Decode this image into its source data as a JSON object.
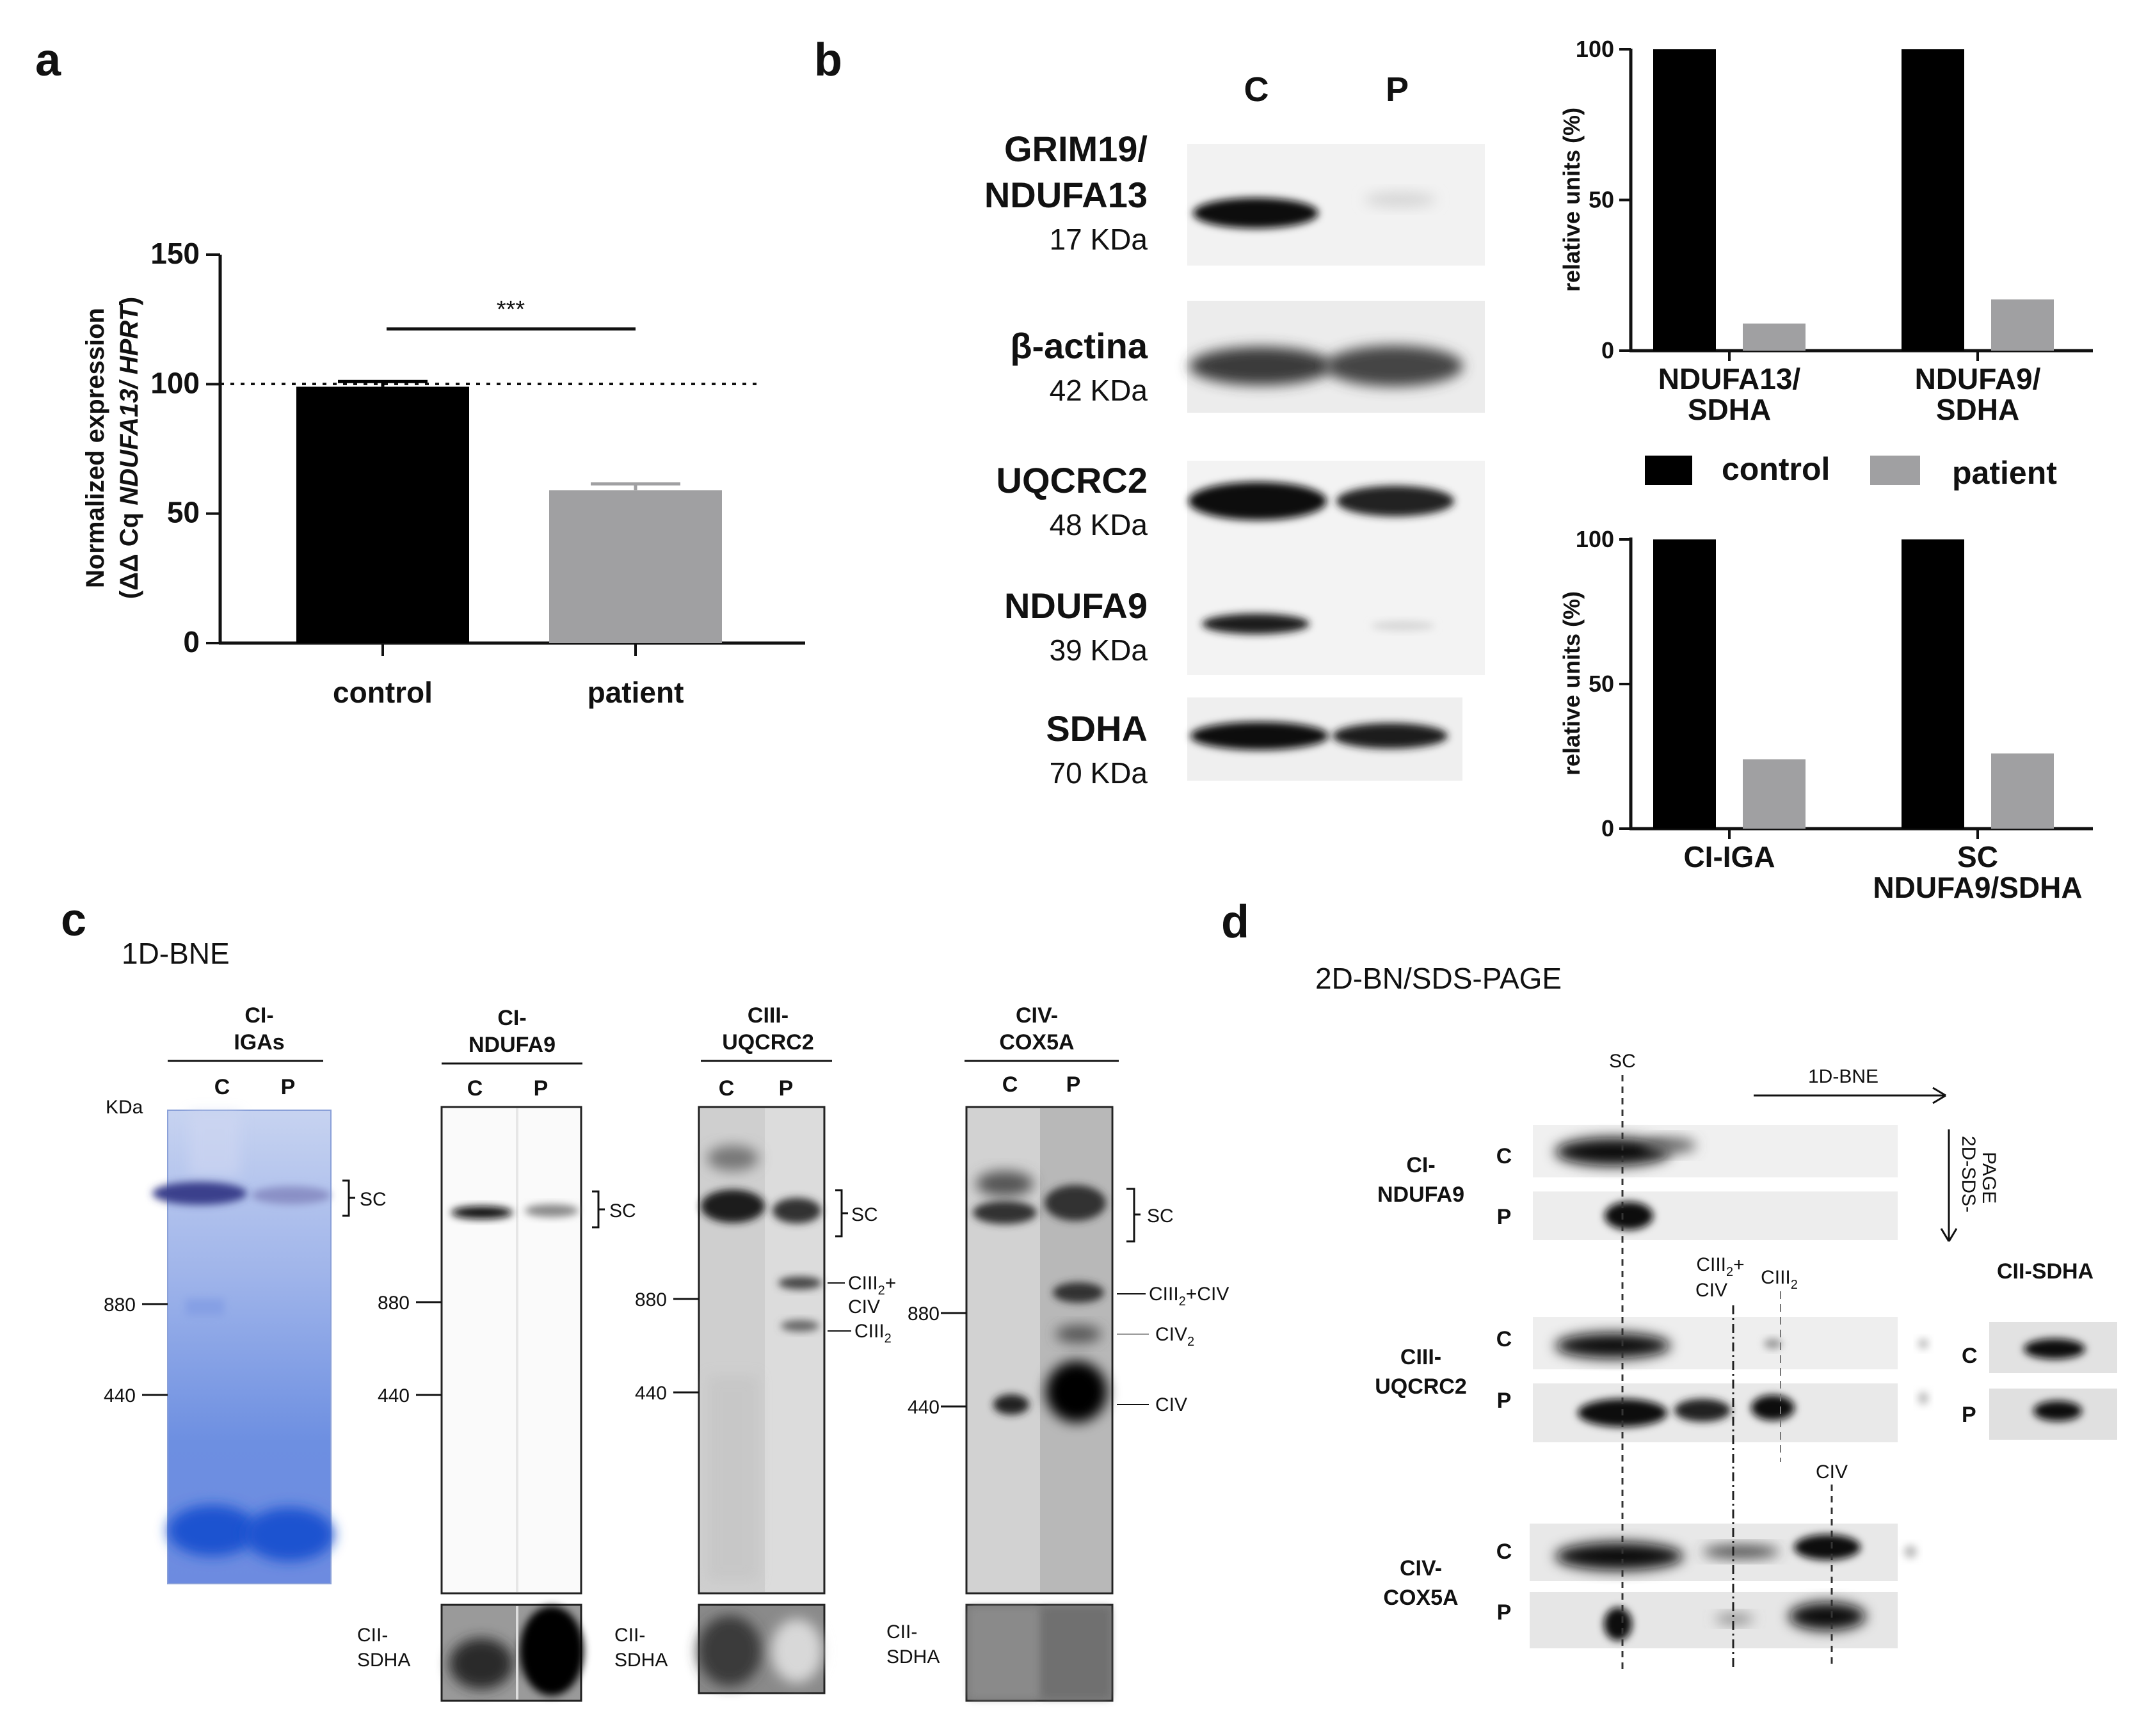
{
  "figure": {
    "panel_a": {
      "label": "a",
      "ylabel_line1": "Normalized expression",
      "ylabel_prefix": "(ΔΔ Cq ",
      "ylabel_italic": "NDUFA13/ HPRT",
      "ylabel_suffix": ")",
      "significance": "***"
    },
    "panel_b": {
      "label": "b",
      "lanes": [
        "C",
        "P"
      ],
      "blots": [
        {
          "name_line1": "GRIM19/",
          "name_line2": "NDUFA13",
          "size": "17 KDa"
        },
        {
          "name_line1": "β-actina",
          "name_line2": "",
          "size": "42 KDa"
        },
        {
          "name_line1": "UQCRC2",
          "name_line2": "",
          "size": "48 KDa"
        },
        {
          "name_line1": "NDUFA9",
          "name_line2": "",
          "size": "39 KDa"
        },
        {
          "name_line1": "SDHA",
          "name_line2": "",
          "size": "70 KDa"
        }
      ],
      "legend": {
        "control": "control",
        "patient": "patient"
      }
    },
    "panel_c": {
      "label": "c",
      "subtitle": "1D-BNE",
      "kda_label": "KDa",
      "gels": [
        {
          "title_line1": "CI-",
          "title_line2": "IGAs",
          "lanes": [
            "C",
            "P"
          ],
          "markers": [
            "880",
            "440"
          ],
          "bands": [
            "SC"
          ],
          "loading": ""
        },
        {
          "title_line1": "CI-",
          "title_line2": "NDUFA9",
          "lanes": [
            "C",
            "P"
          ],
          "markers": [
            "880",
            "440"
          ],
          "bands": [
            "SC"
          ],
          "loading_line1": "CII-",
          "loading_line2": "SDHA"
        },
        {
          "title_line1": "CIII-",
          "title_line2": "UQCRC2",
          "lanes": [
            "C",
            "P"
          ],
          "markers": [
            "880",
            "440"
          ],
          "bands": [
            "SC",
            "CIII",
            "2",
            "+",
            "CIV",
            "CIII",
            "2"
          ],
          "loading_line1": "CII-",
          "loading_line2": "SDHA"
        },
        {
          "title_line1": "CIV-",
          "title_line2": "COX5A",
          "lanes": [
            "C",
            "P"
          ],
          "markers": [
            "880",
            "440"
          ],
          "bands": [
            "SC",
            "CIII",
            "2",
            "+CIV",
            "CIV",
            "2",
            "CIV"
          ],
          "loading_line1": "CII-",
          "loading_line2": "SDHA"
        }
      ]
    },
    "panel_d": {
      "label": "d",
      "subtitle": "2D-BN/SDS-PAGE",
      "sc_label": "SC",
      "first_dim": "1D-BNE",
      "second_dim_line1": "2D-SDS-",
      "second_dim_line2": "PAGE",
      "cii_sdha": "CII-SDHA",
      "blocks": [
        {
          "name_line1": "CI-",
          "name_line2": "NDUFA9"
        },
        {
          "name_line1": "CIII-",
          "name_line2": "UQCRC2"
        },
        {
          "name_line1": "CIV-",
          "name_line2": "COX5A"
        }
      ],
      "rows": [
        "C",
        "P"
      ],
      "marks": {
        "ciii2_civ_a": "CIII",
        "ciii2_civ_sub": "2",
        "ciii2_civ_b": "+",
        "ciii2_civ_c": "CIV",
        "ciii2": "CIII",
        "ciii2_sub": "2",
        "civ": "CIV"
      }
    }
  },
  "chart_data": [
    {
      "type": "bar",
      "panel": "a",
      "categories": [
        "control",
        "patient"
      ],
      "values": [
        99,
        59
      ],
      "errors": [
        2,
        2.5
      ],
      "colors": [
        "#000000",
        "#a0a0a2"
      ],
      "reference_line": 100,
      "ylim": [
        0,
        150
      ],
      "yticks": [
        0,
        50,
        100,
        150
      ],
      "significance": "***"
    },
    {
      "type": "bar",
      "panel": "b-top",
      "ylabel": "relative units (%)",
      "categories": [
        "NDUFA13/\nSDHA",
        "NDUFA9/\nSDHA"
      ],
      "series": [
        {
          "name": "control",
          "values": [
            100,
            100
          ],
          "color": "#000000"
        },
        {
          "name": "patient",
          "values": [
            9,
            17
          ],
          "color": "#a0a0a2"
        }
      ],
      "ylim": [
        0,
        100
      ],
      "yticks": [
        0,
        50,
        100
      ]
    },
    {
      "type": "bar",
      "panel": "b-bottom",
      "ylabel": "relative units (%)",
      "categories": [
        "CI-IGA",
        "SC\nNDUFA9/SDHA"
      ],
      "series": [
        {
          "name": "control",
          "values": [
            100,
            100
          ],
          "color": "#000000"
        },
        {
          "name": "patient",
          "values": [
            24,
            26
          ],
          "color": "#a0a0a2"
        }
      ],
      "ylim": [
        0,
        100
      ],
      "yticks": [
        0,
        50,
        100
      ]
    }
  ]
}
